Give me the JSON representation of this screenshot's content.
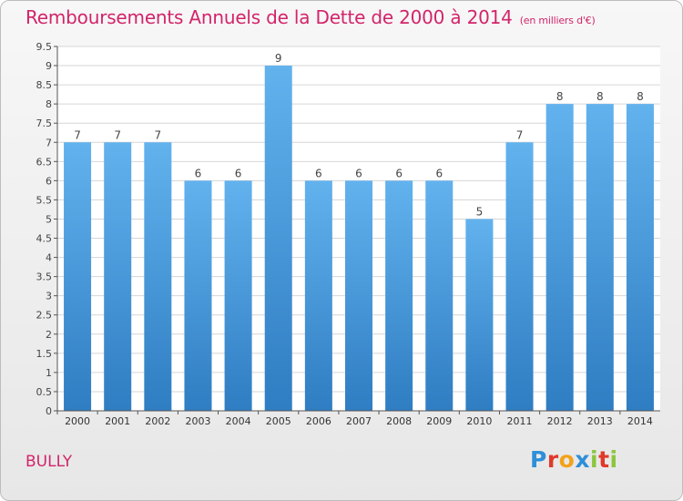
{
  "header": {
    "title": "Remboursements Annuels de la Dette de 2000 à 2014",
    "subtitle": "(en milliers d'€)"
  },
  "footer": {
    "commune": "BULLY",
    "brand": "Proxiti"
  },
  "colors": {
    "title": "#d2246a",
    "bar_top": "#62b2ee",
    "bar_bottom": "#2f7dc2",
    "brand_letters": [
      "#2e8fd8",
      "#e0392b",
      "#f2a21c",
      "#2e8fd8",
      "#8cc63f",
      "#e0392b",
      "#8cc63f"
    ]
  },
  "chart_data": {
    "type": "bar",
    "title": "Remboursements Annuels de la Dette de 2000 à 2014",
    "xlabel": "",
    "ylabel": "",
    "categories": [
      "2000",
      "2001",
      "2002",
      "2003",
      "2004",
      "2005",
      "2006",
      "2007",
      "2008",
      "2009",
      "2010",
      "2011",
      "2012",
      "2013",
      "2014"
    ],
    "values": [
      7,
      7,
      7,
      6,
      6,
      9,
      6,
      6,
      6,
      6,
      5,
      7,
      8,
      8,
      8
    ],
    "value_labels": [
      "7",
      "7",
      "7",
      "6",
      "6",
      "9",
      "6",
      "6",
      "6",
      "6",
      "5",
      "7",
      "8",
      "8",
      "8"
    ],
    "ylim": [
      0,
      9.5
    ],
    "yticks": [
      0,
      0.5,
      1,
      1.5,
      2,
      2.5,
      3,
      3.5,
      4,
      4.5,
      5,
      5.5,
      6,
      6.5,
      7,
      7.5,
      8,
      8.5,
      9,
      9.5
    ],
    "ytick_labels": [
      "0",
      "0.5",
      "1",
      "1.5",
      "2",
      "2.5",
      "3",
      "3.5",
      "4",
      "4.5",
      "5",
      "5.5",
      "6",
      "6.5",
      "7",
      "7.5",
      "8",
      "8.5",
      "9",
      "9.5"
    ],
    "grid": true,
    "legend": "none"
  }
}
